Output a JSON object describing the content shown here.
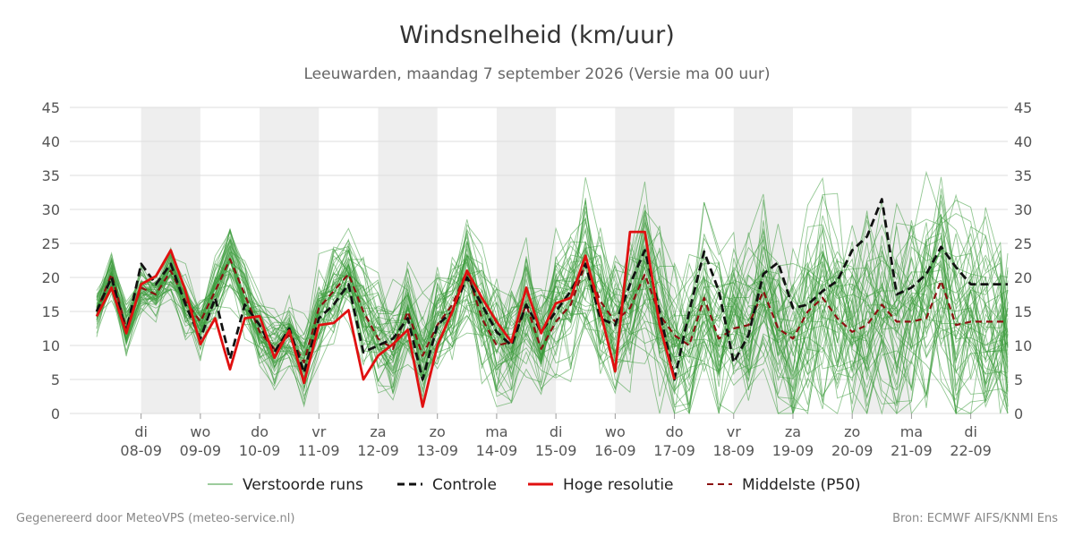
{
  "header": {
    "title": "Windsnelheid (km/uur)",
    "subtitle": "Leeuwarden, maandag  7 september 2026 (Versie ma 00 uur)"
  },
  "footer": {
    "left": "Gegenereerd door MeteoVPS (meteo-service.nl)",
    "right": "Bron: ECMWF AIFS/KNMI Ens"
  },
  "colors": {
    "ensemble": "#3a9a3a",
    "controle": "#111111",
    "hoge_resolutie": "#e01010",
    "p50": "#8b1010",
    "band": "#eeeeee",
    "grid": "#dddddd"
  },
  "chart_data": {
    "type": "line",
    "ylim": [
      0,
      45
    ],
    "yticks": [
      0,
      5,
      10,
      15,
      20,
      25,
      30,
      35,
      40,
      45
    ],
    "xlim": [
      -0.75,
      14.625
    ],
    "grid": true,
    "legend_position": "bottom",
    "x_tick_days": [
      "di",
      "wo",
      "do",
      "vr",
      "za",
      "zo",
      "ma",
      "di",
      "wo",
      "do",
      "vr",
      "za",
      "zo",
      "ma",
      "di"
    ],
    "x_tick_dates": [
      "08-09",
      "09-09",
      "10-09",
      "11-09",
      "12-09",
      "13-09",
      "14-09",
      "15-09",
      "16-09",
      "17-09",
      "18-09",
      "19-09",
      "20-09",
      "21-09",
      "22-09"
    ],
    "shaded_days": [
      0,
      2,
      4,
      6,
      8,
      10,
      12
    ],
    "legend": [
      {
        "label": "Verstoorde runs",
        "style": "ensemble"
      },
      {
        "label": "Controle",
        "style": "controle"
      },
      {
        "label": "Hoge resolutie",
        "style": "hoge_resolutie"
      },
      {
        "label": "Middelste (P50)",
        "style": "p50"
      }
    ],
    "hoge_resolutie": {
      "name": "Hoge resolutie",
      "x": [
        -0.75,
        -0.5,
        -0.25,
        0.0,
        0.25,
        0.5,
        0.75,
        1.0,
        1.25,
        1.5,
        1.75,
        2.0,
        2.25,
        2.5,
        2.75,
        3.0,
        3.25,
        3.5,
        3.75,
        4.0,
        4.25,
        4.5,
        4.75,
        5.0,
        5.25,
        5.5,
        5.75,
        6.0,
        6.25,
        6.5,
        6.75,
        7.0,
        7.25,
        7.5,
        7.75,
        8.0,
        8.25,
        8.5,
        8.75,
        9.0
      ],
      "y": [
        14.3,
        18.5,
        11.8,
        19.0,
        20.2,
        24.0,
        18.0,
        10.2,
        14.0,
        6.5,
        14.0,
        14.3,
        8.2,
        12.2,
        4.5,
        13.0,
        13.3,
        15.2,
        5.0,
        8.5,
        10.2,
        12.3,
        1.0,
        10.0,
        15.0,
        21.0,
        17.0,
        13.5,
        10.5,
        18.5,
        11.8,
        16.2,
        17.0,
        23.2,
        15.0,
        6.2,
        26.7,
        26.7,
        13.0,
        5.0
      ]
    },
    "controle": {
      "name": "Controle",
      "x": [
        -0.75,
        -0.5,
        -0.25,
        0.0,
        0.25,
        0.5,
        0.75,
        1.0,
        1.25,
        1.5,
        1.75,
        2.0,
        2.25,
        2.5,
        2.75,
        3.0,
        3.25,
        3.5,
        3.75,
        4.0,
        4.25,
        4.5,
        4.75,
        5.0,
        5.25,
        5.5,
        5.75,
        6.0,
        6.25,
        6.5,
        6.75,
        7.0,
        7.25,
        7.5,
        7.75,
        8.0,
        8.25,
        8.5,
        8.75,
        9.0,
        9.25,
        9.5,
        9.75,
        10.0,
        10.25,
        10.5,
        10.75,
        11.0,
        11.25,
        11.5,
        11.75,
        12.0,
        12.25,
        12.5,
        12.75,
        13.0,
        13.25,
        13.5,
        13.75,
        14.0,
        14.25,
        14.5,
        14.625
      ],
      "y": [
        15.0,
        20.0,
        12.0,
        22.0,
        19.0,
        22.0,
        16.0,
        11.0,
        17.0,
        8.0,
        16.0,
        13.0,
        9.0,
        12.5,
        6.0,
        14.0,
        16.0,
        19.0,
        9.0,
        10.0,
        11.0,
        14.0,
        5.0,
        13.0,
        15.0,
        20.0,
        16.0,
        12.0,
        10.0,
        16.0,
        12.0,
        15.0,
        18.0,
        22.0,
        14.0,
        13.0,
        19.0,
        24.0,
        15.0,
        5.0,
        15.0,
        23.8,
        18.0,
        7.5,
        11.5,
        20.5,
        22.2,
        15.5,
        16.0,
        18.0,
        19.5,
        24.0,
        26.0,
        31.5,
        17.5,
        18.5,
        20.5,
        24.5,
        21.5,
        19.0,
        19.0,
        19.0,
        19.0
      ]
    },
    "p50": {
      "name": "Middelste (P50)",
      "x": [
        -0.75,
        -0.5,
        -0.25,
        0.0,
        0.25,
        0.5,
        0.75,
        1.0,
        1.25,
        1.5,
        1.75,
        2.0,
        2.25,
        2.5,
        2.75,
        3.0,
        3.25,
        3.5,
        3.75,
        4.0,
        4.25,
        4.5,
        4.75,
        5.0,
        5.25,
        5.5,
        5.75,
        6.0,
        6.25,
        6.5,
        6.75,
        7.0,
        7.25,
        7.5,
        7.75,
        8.0,
        8.25,
        8.5,
        8.75,
        9.0,
        9.25,
        9.5,
        9.75,
        10.0,
        10.25,
        10.5,
        10.75,
        11.0,
        11.25,
        11.5,
        11.75,
        12.0,
        12.25,
        12.5,
        12.75,
        13.0,
        13.25,
        13.5,
        13.75,
        14.0,
        14.25,
        14.5,
        14.625
      ],
      "y": [
        15.0,
        20.5,
        12.5,
        18.5,
        17.5,
        21.0,
        16.5,
        13.5,
        18.0,
        22.7,
        17.5,
        12.0,
        9.5,
        11.5,
        7.5,
        15.5,
        18.0,
        20.5,
        15.0,
        11.0,
        9.5,
        15.0,
        8.5,
        13.0,
        16.0,
        21.0,
        14.0,
        10.0,
        10.5,
        16.0,
        9.5,
        13.5,
        16.0,
        22.0,
        16.5,
        13.5,
        15.5,
        20.5,
        14.5,
        11.5,
        10.0,
        17.0,
        11.0,
        12.5,
        13.0,
        18.0,
        12.5,
        11.0,
        15.0,
        17.0,
        14.0,
        12.0,
        13.0,
        16.0,
        13.5,
        13.5,
        14.0,
        19.5,
        13.0,
        13.5,
        13.5,
        13.5,
        13.5
      ]
    }
  }
}
